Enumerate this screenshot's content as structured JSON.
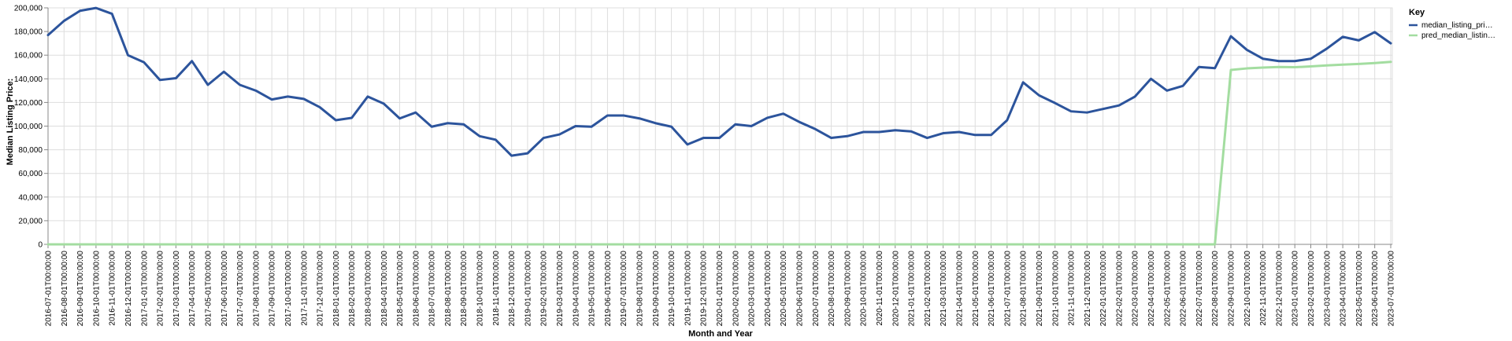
{
  "chart_data": {
    "type": "line",
    "xlabel": "Month and Year",
    "ylabel": "Median Listing Price:",
    "ylim": [
      0,
      200000
    ],
    "yticks": [
      "0",
      "20,000",
      "40,000",
      "60,000",
      "80,000",
      "100,000",
      "120,000",
      "140,000",
      "160,000",
      "180,000",
      "200,000"
    ],
    "grid": true,
    "legend": {
      "title": "Key",
      "placement": "top-right"
    },
    "x": [
      "2016-07-01T00:00:00",
      "2016-08-01T00:00:00",
      "2016-09-01T00:00:00",
      "2016-10-01T00:00:00",
      "2016-11-01T00:00:00",
      "2016-12-01T00:00:00",
      "2017-01-01T00:00:00",
      "2017-02-01T00:00:00",
      "2017-03-01T00:00:00",
      "2017-04-01T00:00:00",
      "2017-05-01T00:00:00",
      "2017-06-01T00:00:00",
      "2017-07-01T00:00:00",
      "2017-08-01T00:00:00",
      "2017-09-01T00:00:00",
      "2017-10-01T00:00:00",
      "2017-11-01T00:00:00",
      "2017-12-01T00:00:00",
      "2018-01-01T00:00:00",
      "2018-02-01T00:00:00",
      "2018-03-01T00:00:00",
      "2018-04-01T00:00:00",
      "2018-05-01T00:00:00",
      "2018-06-01T00:00:00",
      "2018-07-01T00:00:00",
      "2018-08-01T00:00:00",
      "2018-09-01T00:00:00",
      "2018-10-01T00:00:00",
      "2018-11-01T00:00:00",
      "2018-12-01T00:00:00",
      "2019-01-01T00:00:00",
      "2019-02-01T00:00:00",
      "2019-03-01T00:00:00",
      "2019-04-01T00:00:00",
      "2019-05-01T00:00:00",
      "2019-06-01T00:00:00",
      "2019-07-01T00:00:00",
      "2019-08-01T00:00:00",
      "2019-09-01T00:00:00",
      "2019-10-01T00:00:00",
      "2019-11-01T00:00:00",
      "2019-12-01T00:00:00",
      "2020-01-01T00:00:00",
      "2020-02-01T00:00:00",
      "2020-03-01T00:00:00",
      "2020-04-01T00:00:00",
      "2020-05-01T00:00:00",
      "2020-06-01T00:00:00",
      "2020-07-01T00:00:00",
      "2020-08-01T00:00:00",
      "2020-09-01T00:00:00",
      "2020-10-01T00:00:00",
      "2020-11-01T00:00:00",
      "2020-12-01T00:00:00",
      "2021-01-01T00:00:00",
      "2021-02-01T00:00:00",
      "2021-03-01T00:00:00",
      "2021-04-01T00:00:00",
      "2021-05-01T00:00:00",
      "2021-06-01T00:00:00",
      "2021-07-01T00:00:00",
      "2021-08-01T00:00:00",
      "2021-09-01T00:00:00",
      "2021-10-01T00:00:00",
      "2021-11-01T00:00:00",
      "2021-12-01T00:00:00",
      "2022-01-01T00:00:00",
      "2022-02-01T00:00:00",
      "2022-03-01T00:00:00",
      "2022-04-01T00:00:00",
      "2022-05-01T00:00:00",
      "2022-06-01T00:00:00",
      "2022-07-01T00:00:00",
      "2022-08-01T00:00:00",
      "2022-09-01T00:00:00",
      "2022-10-01T00:00:00",
      "2022-11-01T00:00:00",
      "2022-12-01T00:00:00",
      "2023-01-01T00:00:00",
      "2023-02-01T00:00:00",
      "2023-03-01T00:00:00",
      "2023-04-01T00:00:00",
      "2023-05-01T00:00:00",
      "2023-06-01T00:00:00",
      "2023-07-01T00:00:00"
    ],
    "series": [
      {
        "name": "median_listing_pri…",
        "color": "#2c549c",
        "values": [
          177000,
          189000,
          197500,
          199900,
          195000,
          160000,
          154000,
          139000,
          140500,
          155000,
          134900,
          146000,
          134900,
          130000,
          122500,
          125000,
          123000,
          116000,
          105000,
          107000,
          125000,
          119000,
          106500,
          111500,
          99500,
          102500,
          101500,
          91500,
          88500,
          75000,
          77000,
          90000,
          93000,
          100000,
          99500,
          109000,
          109000,
          106500,
          102500,
          99500,
          84500,
          90000,
          90000,
          101500,
          100000,
          107000,
          110500,
          103500,
          97500,
          90000,
          91500,
          95000,
          95000,
          96500,
          95500,
          90000,
          94000,
          95000,
          92500,
          92500,
          105000,
          137000,
          126000,
          119500,
          112500,
          111500,
          114500,
          117500,
          125000,
          140000,
          130000,
          134000,
          150000,
          149000,
          176000,
          164500,
          157000,
          155000,
          155000,
          157000,
          165500,
          175500,
          172500,
          179500,
          170000
        ]
      },
      {
        "name": "pred_median_listin…",
        "color": "#a3dda0",
        "values": [
          0,
          0,
          0,
          0,
          0,
          0,
          0,
          0,
          0,
          0,
          0,
          0,
          0,
          0,
          0,
          0,
          0,
          0,
          0,
          0,
          0,
          0,
          0,
          0,
          0,
          0,
          0,
          0,
          0,
          0,
          0,
          0,
          0,
          0,
          0,
          0,
          0,
          0,
          0,
          0,
          0,
          0,
          0,
          0,
          0,
          0,
          0,
          0,
          0,
          0,
          0,
          0,
          0,
          0,
          0,
          0,
          0,
          0,
          0,
          0,
          0,
          0,
          0,
          0,
          0,
          0,
          0,
          0,
          0,
          0,
          0,
          0,
          0,
          0,
          147500,
          148800,
          149500,
          150000,
          149800,
          150500,
          151300,
          152000,
          152600,
          153300,
          154300
        ]
      }
    ]
  }
}
